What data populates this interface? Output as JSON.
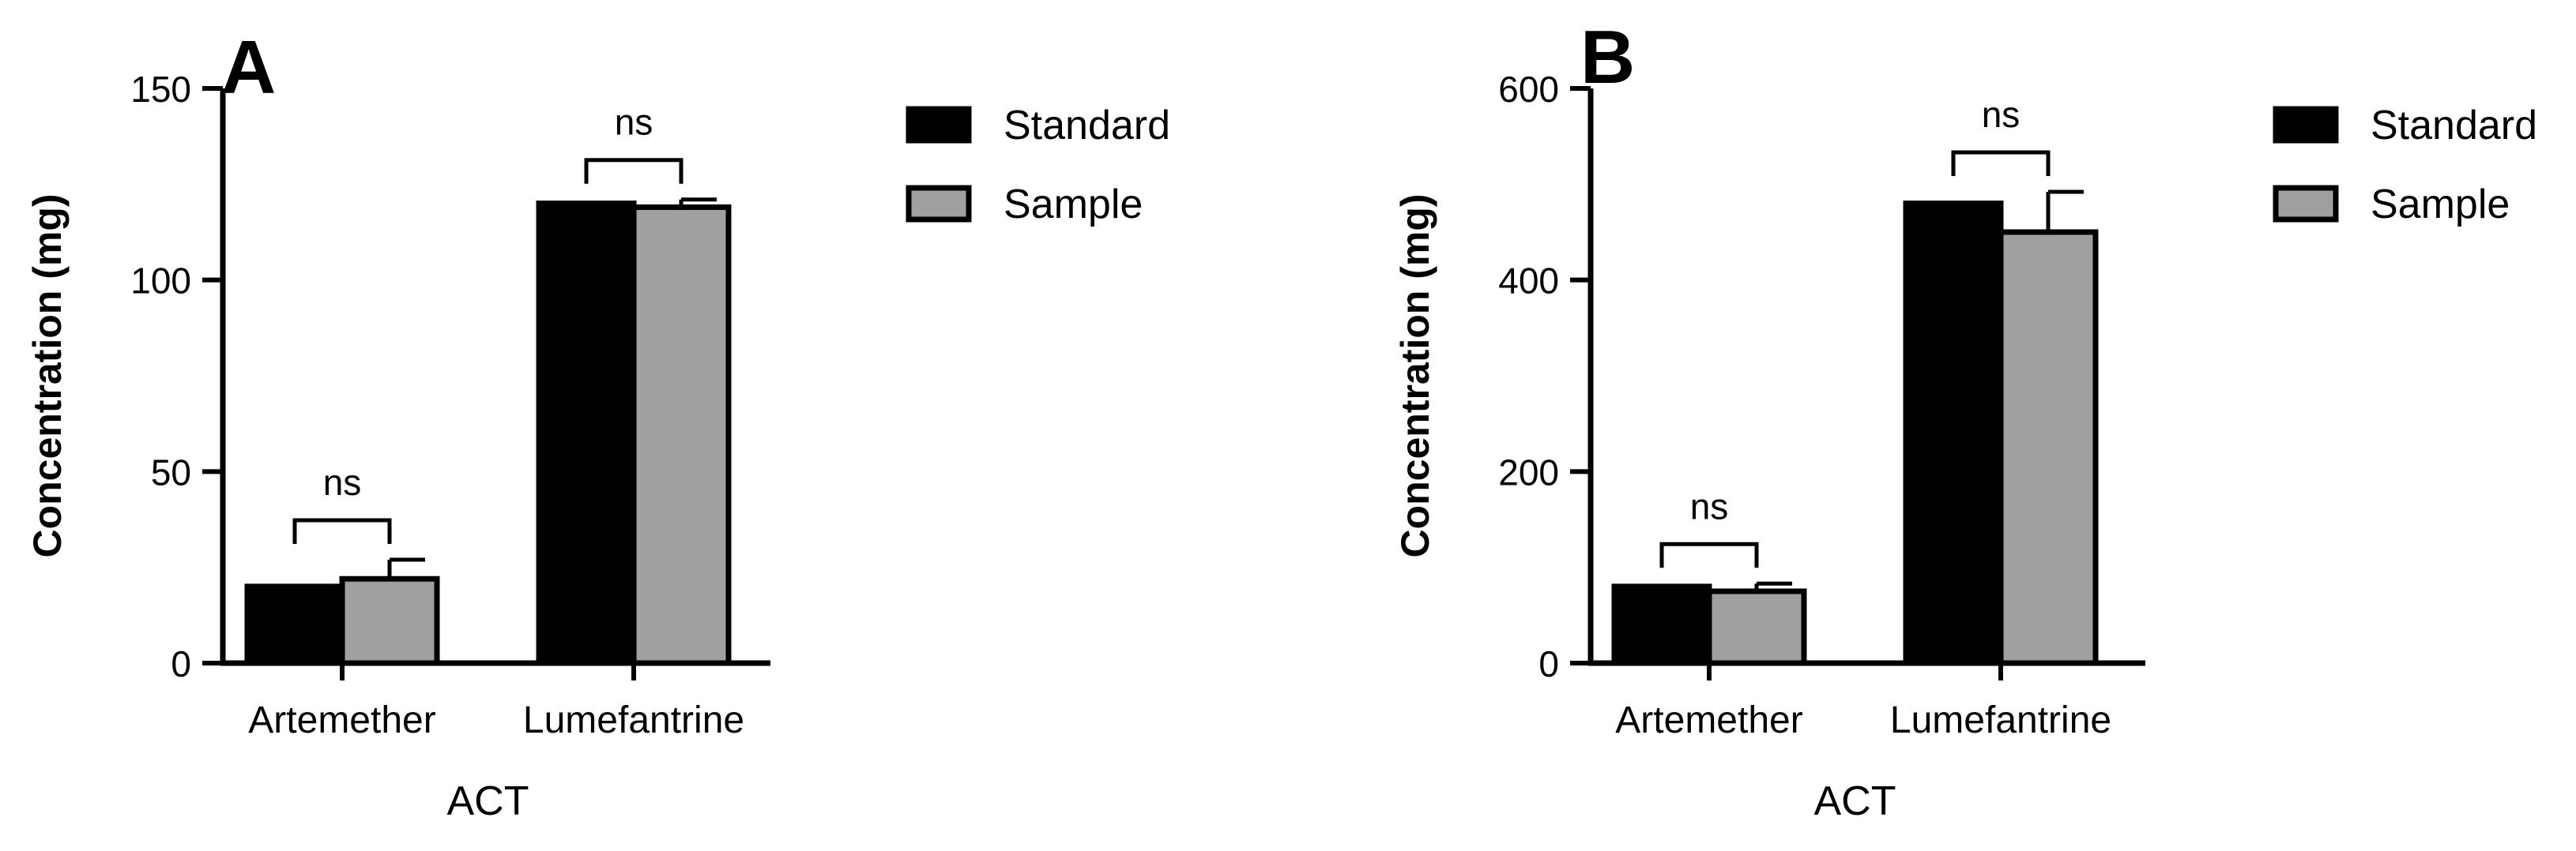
{
  "chart_data": [
    {
      "type": "bar",
      "panel_label": "A",
      "categories": [
        "Artemether",
        "Lumefantrine"
      ],
      "series": [
        {
          "name": "Standard",
          "values": [
            20,
            120
          ],
          "errors": [
            0,
            0
          ],
          "color": "#000000"
        },
        {
          "name": "Sample",
          "values": [
            22,
            119
          ],
          "errors": [
            5,
            2
          ],
          "color": "#a0a0a0"
        }
      ],
      "significance": [
        "ns",
        "ns"
      ],
      "xlabel": "ACT",
      "ylabel": "Concentration (mg)",
      "ylim": [
        0,
        150
      ],
      "yticks": [
        0,
        50,
        100,
        150
      ],
      "legend_placement": "top-right",
      "grid": false
    },
    {
      "type": "bar",
      "panel_label": "B",
      "categories": [
        "Artemether",
        "Lumefantrine"
      ],
      "series": [
        {
          "name": "Standard",
          "values": [
            80,
            480
          ],
          "errors": [
            0,
            0
          ],
          "color": "#000000"
        },
        {
          "name": "Sample",
          "values": [
            75,
            450
          ],
          "errors": [
            8,
            42
          ],
          "color": "#a0a0a0"
        }
      ],
      "significance": [
        "ns",
        "ns"
      ],
      "xlabel": "ACT",
      "ylabel": "Concentration (mg)",
      "ylim": [
        0,
        600
      ],
      "yticks": [
        0,
        200,
        400,
        600
      ],
      "legend_placement": "top-right",
      "grid": false
    }
  ]
}
